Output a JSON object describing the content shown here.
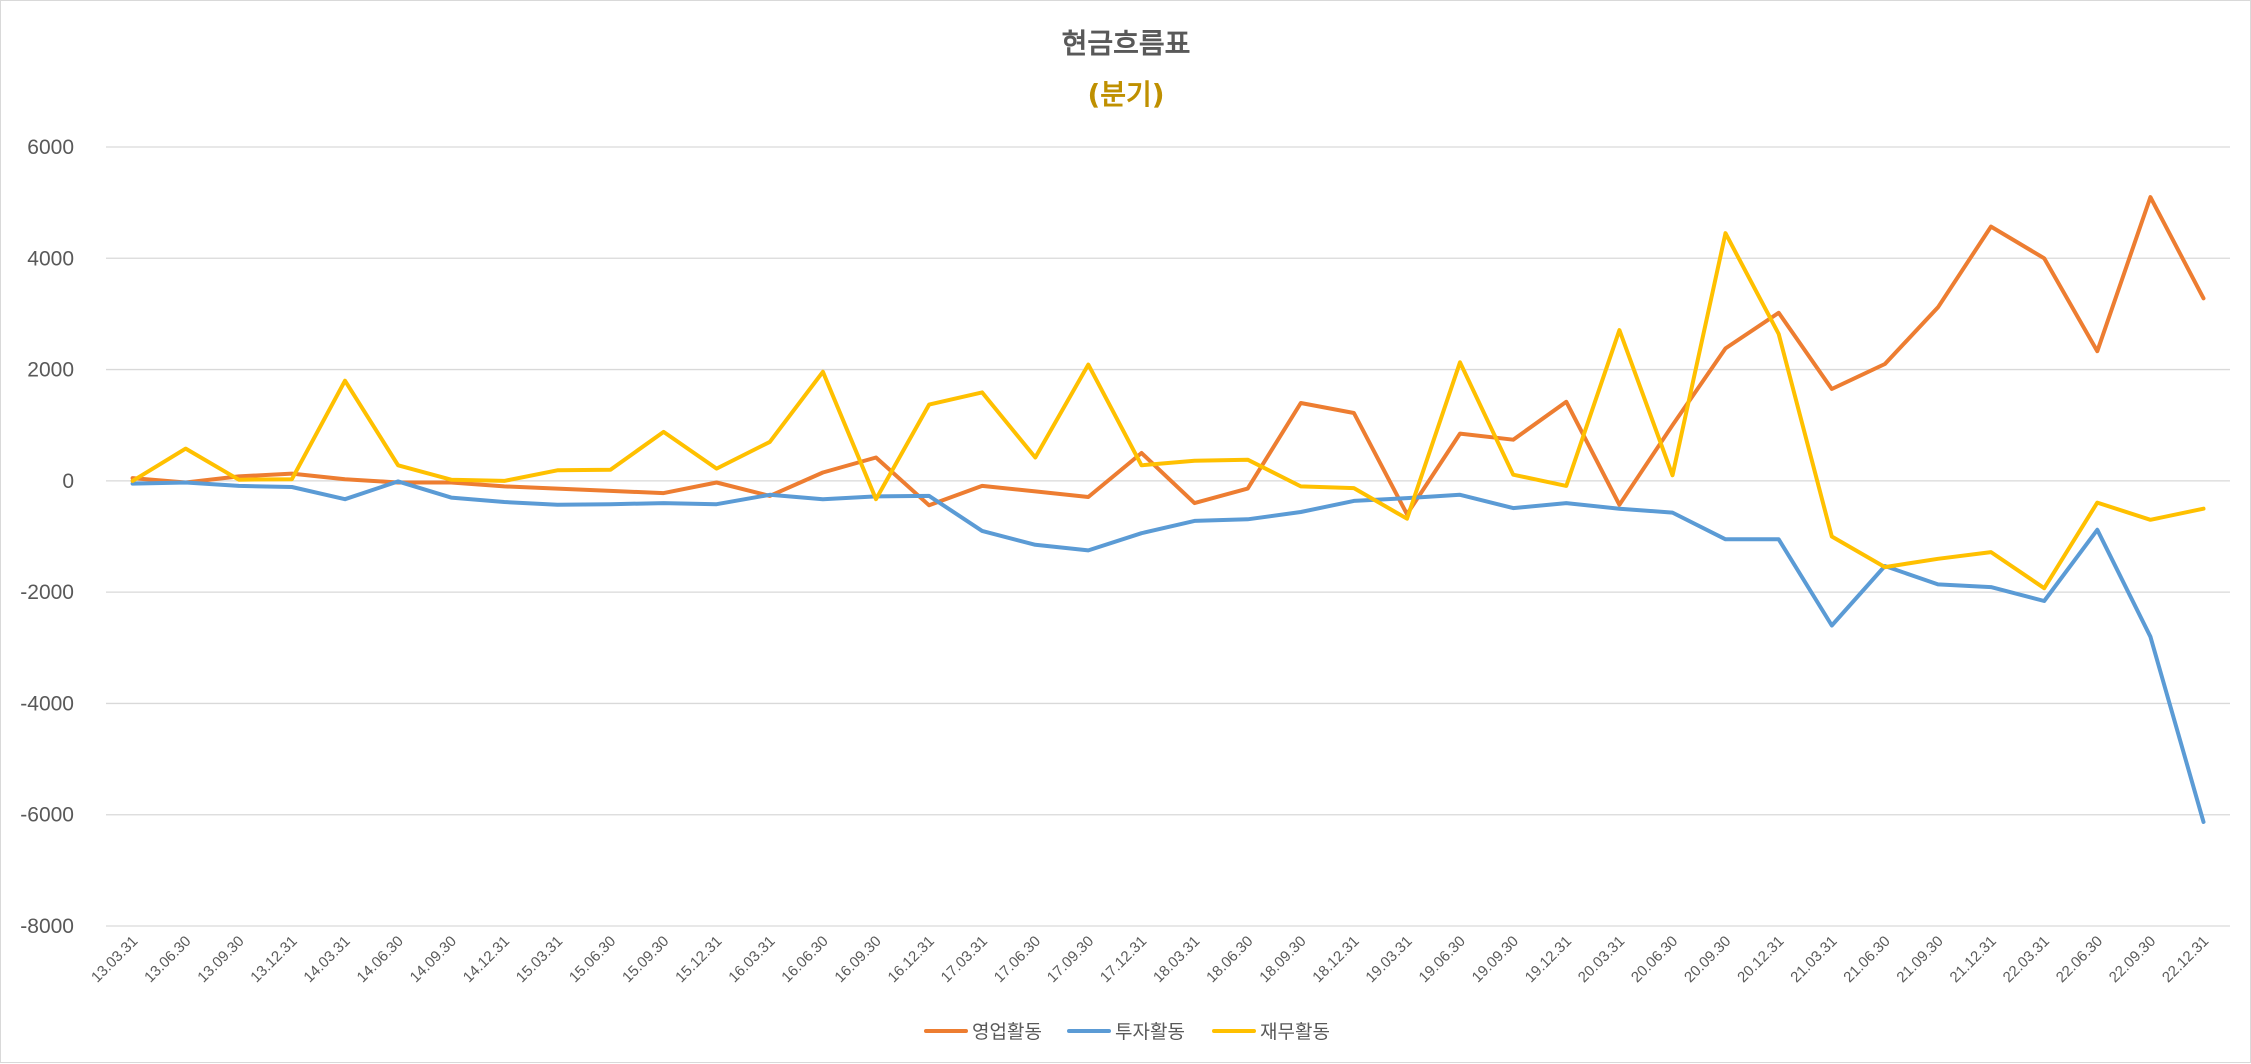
{
  "chart_data": {
    "type": "line",
    "title": "현금흐름표",
    "subtitle": "(분기)",
    "xlabel": "",
    "ylabel": "",
    "ylim": [
      -8000,
      6000
    ],
    "yticks": [
      6000,
      4000,
      2000,
      0,
      -2000,
      -4000,
      -6000,
      -8000
    ],
    "ytick_labels": [
      "6000",
      "4000",
      "2000",
      "0",
      "-2000",
      "-4000",
      "-6000",
      "-8000"
    ],
    "grid": true,
    "legend_position": "bottom",
    "categories": [
      "13.03.31",
      "13.06.30",
      "13.09.30",
      "13.12.31",
      "14.03.31",
      "14.06.30",
      "14.09.30",
      "14.12.31",
      "15.03.31",
      "15.06.30",
      "15.09.30",
      "15.12.31",
      "16.03.31",
      "16.06.30",
      "16.09.30",
      "16.12.31",
      "17.03.31",
      "17.06.30",
      "17.09.30",
      "17.12.31",
      "18.03.31",
      "18.06.30",
      "18.09.30",
      "18.12.31",
      "19.03.31",
      "19.06.30",
      "19.09.30",
      "19.12.31",
      "20.03.31",
      "20.06.30",
      "20.09.30",
      "20.12.31",
      "21.03.31",
      "21.06.30",
      "21.09.30",
      "21.12.31",
      "22.03.31",
      "22.06.30",
      "22.09.30",
      "22.12.31"
    ],
    "series": [
      {
        "name": "영업활동",
        "color": "#ed7d31",
        "values": [
          50,
          -30,
          80,
          130,
          30,
          -30,
          -30,
          -100,
          -140,
          -180,
          -220,
          -30,
          -270,
          150,
          420,
          -440,
          -90,
          -190,
          -290,
          500,
          -400,
          -140,
          1400,
          1220,
          -600,
          850,
          740,
          1420,
          -430,
          1000,
          2380,
          3020,
          1650,
          2100,
          3120,
          4570,
          4000,
          2330,
          5100,
          3280
        ]
      },
      {
        "name": "투자활동",
        "color": "#5b9bd5",
        "values": [
          -50,
          -30,
          -90,
          -110,
          -330,
          -10,
          -300,
          -380,
          -430,
          -420,
          -400,
          -420,
          -250,
          -330,
          -280,
          -270,
          -900,
          -1150,
          -1250,
          -940,
          -720,
          -690,
          -560,
          -360,
          -310,
          -250,
          -490,
          -400,
          -500,
          -570,
          -1050,
          -1050,
          -2600,
          -1530,
          -1860,
          -1910,
          -2160,
          -880,
          -2800,
          -6130
        ]
      },
      {
        "name": "재무활동",
        "color": "#ffc000",
        "values": [
          0,
          580,
          20,
          30,
          1800,
          280,
          20,
          0,
          190,
          200,
          880,
          220,
          700,
          1960,
          -330,
          1370,
          1590,
          420,
          2090,
          280,
          360,
          380,
          -100,
          -130,
          -680,
          2130,
          110,
          -90,
          2710,
          100,
          4450,
          2640,
          -1000,
          -1550,
          -1400,
          -1280,
          -1930,
          -390,
          -700,
          -500
        ]
      }
    ]
  }
}
